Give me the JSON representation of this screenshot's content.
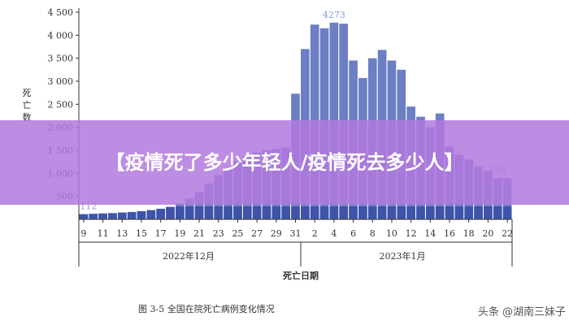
{
  "chart_data": {
    "type": "bar",
    "title": "",
    "caption": "图 3-5  全国在院死亡病例变化情况",
    "xlabel": "死亡日期",
    "ylabel": "死亡数",
    "ylim": [
      0,
      4500
    ],
    "yticks": [
      "4 500",
      "4 000",
      "3 500",
      "3 000",
      "2 500",
      "2 000",
      "1 500",
      "1 000",
      "500"
    ],
    "ytick_values": [
      4500,
      4000,
      3500,
      3000,
      2500,
      2000,
      1500,
      1000,
      500
    ],
    "x_tick_labels": [
      "9",
      "11",
      "13",
      "15",
      "17",
      "19",
      "21",
      "23",
      "25",
      "27",
      "29",
      "31",
      "2",
      "4",
      "6",
      "8",
      "10",
      "12",
      "14",
      "16",
      "18",
      "20",
      "22"
    ],
    "month_labels": [
      "2022年12月",
      "2023年1月"
    ],
    "grid": false,
    "values": [
      112,
      120,
      128,
      135,
      148,
      160,
      178,
      200,
      230,
      270,
      340,
      450,
      600,
      780,
      960,
      1100,
      1250,
      1370,
      1450,
      1500,
      1530,
      1560,
      2730,
      3700,
      4230,
      4150,
      4273,
      4250,
      3450,
      3070,
      3500,
      3680,
      3450,
      3250,
      2450,
      2230,
      2000,
      2300,
      1580,
      1400,
      1300,
      1150,
      1050,
      896,
      896
    ],
    "data_labels": [
      {
        "index": 0,
        "text": "112"
      },
      {
        "index": 26,
        "text": "4273"
      },
      {
        "index": 43,
        "text": "896"
      }
    ],
    "bar_color": "#6c7fc4",
    "bar_bottom_color": "#3f53a8",
    "data_label_color": "#8a9ad2"
  },
  "banner": {
    "text": "【疫情死了多少年轻人/疫情死去多少人】",
    "color": "#b278de"
  },
  "watermark": "头条 @湖南三妹子"
}
